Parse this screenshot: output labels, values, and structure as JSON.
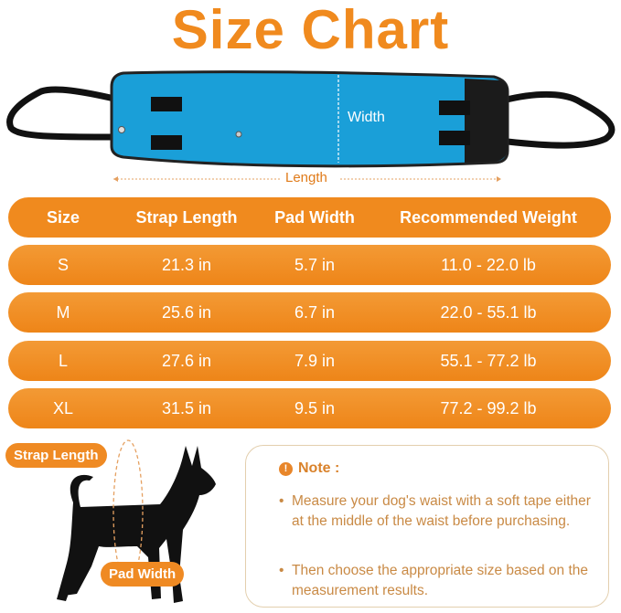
{
  "title": "Size Chart",
  "diagram": {
    "width_label": "Width",
    "length_label": "Length",
    "pad_color": "#1a9fd8"
  },
  "table": {
    "headers": [
      "Size",
      "Strap Length",
      "Pad Width",
      "Recommended Weight"
    ],
    "rows": [
      [
        "S",
        "21.3 in",
        "5.7 in",
        "11.0 - 22.0 lb"
      ],
      [
        "M",
        "25.6 in",
        "6.7 in",
        "22.0 - 55.1 lb"
      ],
      [
        "L",
        "27.6 in",
        "7.9 in",
        "55.1 - 77.2 lb"
      ],
      [
        "XL",
        "31.5 in",
        "9.5 in",
        "77.2 - 99.2 lb"
      ]
    ],
    "accent": "#f08a1e"
  },
  "dog": {
    "strap_label": "Strap Length",
    "pad_label": "Pad Width"
  },
  "note": {
    "icon": "exclamation-circle-icon",
    "icon_glyph": "!",
    "heading": "Note :",
    "bullet": "•",
    "items": [
      "Measure your dog's waist with a soft tape either at the middle of the waist before purchasing.",
      "Then choose the appropriate size based on the measurement results."
    ]
  }
}
